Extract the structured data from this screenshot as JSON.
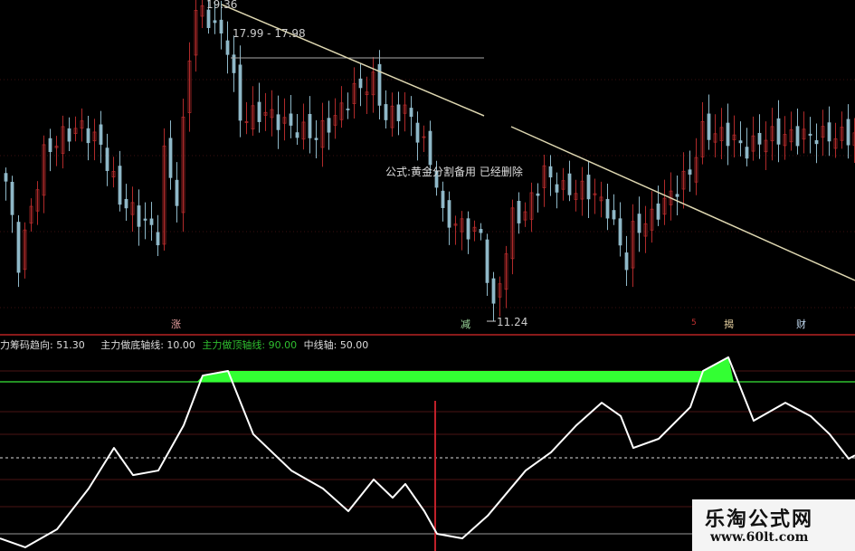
{
  "chart_data": [
    {
      "type": "candlestick",
      "title": "",
      "price_labels": {
        "high": "19.36",
        "range": "17.99 - 17.98",
        "low": "11.24"
      },
      "annotation": "公式:黄金分割备用 已经删除",
      "markers": [
        "涨",
        "减",
        "5",
        "揭",
        "财"
      ],
      "close_keypoints": {
        "bar": [
          0,
          2,
          4,
          6,
          9,
          12,
          15,
          18,
          21,
          24,
          25,
          27,
          29,
          30,
          32,
          35,
          37,
          41,
          45,
          49,
          52,
          55,
          58,
          60,
          63,
          66,
          68,
          69,
          72,
          75,
          77,
          80,
          82,
          85,
          88,
          92,
          95,
          98,
          99,
          102,
          105,
          108,
          110,
          114,
          117,
          120,
          124,
          128,
          134
        ],
        "price": [
          14.83,
          12.74,
          14.13,
          15.53,
          15.99,
          16.22,
          15.76,
          14.37,
          13.9,
          13.44,
          15.53,
          14.37,
          18.08,
          19.24,
          19.01,
          18.31,
          16.46,
          16.58,
          16.22,
          15.99,
          16.46,
          17.15,
          17.38,
          16.46,
          16.69,
          15.76,
          14.83,
          13.9,
          13.67,
          13.44,
          11.47,
          13.9,
          14.02,
          15.06,
          14.6,
          14.6,
          14.13,
          12.74,
          13.55,
          13.9,
          14.48,
          15.06,
          16.11,
          15.99,
          15.64,
          15.99,
          15.99,
          15.99,
          15.99
        ]
      },
      "ylim": [
        11.24,
        19.36
      ]
    },
    {
      "type": "line",
      "legend": [
        {
          "label": "力筹码趋向",
          "value": "51.30",
          "color": "#ffffff"
        },
        {
          "label": "主力做底轴线",
          "value": "10.00",
          "color": "#cccccc"
        },
        {
          "label": "主力做顶轴线",
          "value": "90.00",
          "color": "#2fbf2f"
        },
        {
          "label": "中线轴",
          "value": "50.00",
          "color": "#cccccc"
        }
      ],
      "reference_lines": [
        10,
        50,
        90
      ],
      "x": [
        0,
        4,
        9,
        14,
        18,
        21,
        25,
        29,
        32,
        36,
        40,
        46,
        51,
        55,
        59,
        62,
        64,
        67,
        69,
        73,
        77,
        83,
        87,
        91,
        95,
        98,
        100,
        104,
        109,
        111,
        115,
        119,
        124,
        128,
        131,
        134,
        135
      ],
      "values": [
        7.6,
        2.9,
        12.4,
        33.8,
        55.2,
        40.9,
        43.3,
        67.1,
        93.3,
        95.7,
        62.4,
        43.3,
        33.8,
        21.9,
        38.6,
        29.0,
        36.2,
        21.9,
        10.0,
        7.6,
        19.5,
        43.3,
        52.9,
        67.1,
        79.0,
        72.0,
        55.2,
        60.0,
        76.7,
        95.7,
        102.9,
        69.5,
        79.0,
        71.9,
        62.4,
        49.5,
        51.3
      ],
      "ylim": [
        10,
        100
      ]
    }
  ],
  "watermark": {
    "name": "乐淘公式网",
    "url": "www.60lt.com"
  },
  "colors": {
    "up": "#b02a2a",
    "down": "#8fb8c8",
    "oscillator": "#ffffff",
    "top_line": "#2fbf2f",
    "fill_top": "#33ff33",
    "divider": "#8a1a1a"
  }
}
